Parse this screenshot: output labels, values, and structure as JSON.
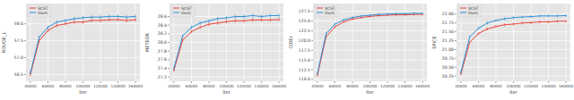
{
  "chart_data": [
    {
      "type": "line",
      "y_label": "ROUGE_L",
      "x_label": "Iter",
      "x": [
        40000,
        50000,
        60000,
        70000,
        80000,
        90000,
        100000,
        110000,
        120000,
        130000,
        140000,
        150000,
        160000
      ],
      "xlim": [
        35000,
        165000
      ],
      "xticks": [
        40000,
        60000,
        80000,
        100000,
        120000,
        140000,
        160000
      ],
      "ylim": [
        56.3,
        58.6
      ],
      "yticks": [
        56.5,
        {
          "value": 57,
          "label": "57.0"
        },
        57.5,
        {
          "value": 58,
          "label": "58.0"
        }
      ],
      "grid": true,
      "legend": "upper left",
      "series": [
        {
          "name": "SCST",
          "color": "#e8433a",
          "marker": "none",
          "values": [
            56.5,
            57.5,
            57.8,
            57.95,
            58.0,
            58.05,
            58.05,
            58.1,
            58.1,
            58.12,
            58.12,
            58.1,
            58.12
          ],
          "errors": [
            0.05,
            0.05,
            0.05,
            0.05,
            0.05,
            0.05,
            0.05,
            0.05,
            0.05,
            0.05,
            0.05,
            0.05,
            0.05
          ]
        },
        {
          "name": "Ours",
          "color": "#2e8fd6",
          "marker": "none",
          "values": [
            56.55,
            57.6,
            57.9,
            58.05,
            58.1,
            58.15,
            58.18,
            58.2,
            58.2,
            58.22,
            58.22,
            58.2,
            58.22
          ],
          "errors": [
            0.05,
            0.05,
            0.05,
            0.05,
            0.05,
            0.05,
            0.05,
            0.05,
            0.05,
            0.05,
            0.05,
            0.05,
            0.05
          ]
        }
      ]
    },
    {
      "type": "line",
      "y_label": "METEOR",
      "x_label": "Iter",
      "x": [
        40000,
        50000,
        60000,
        70000,
        80000,
        90000,
        100000,
        110000,
        120000,
        130000,
        140000,
        150000,
        160000
      ],
      "xlim": [
        35000,
        165000
      ],
      "xticks": [
        40000,
        60000,
        80000,
        100000,
        120000,
        140000,
        160000
      ],
      "ylim": [
        27.1,
        28.9
      ],
      "yticks": [
        27.2,
        27.4,
        27.6,
        27.8,
        {
          "value": 28,
          "label": "28.0"
        },
        28.2,
        28.4,
        28.6
      ],
      "grid": true,
      "legend": "upper left",
      "series": [
        {
          "name": "SCST",
          "color": "#e8433a",
          "marker": "none",
          "values": [
            27.35,
            28.05,
            28.25,
            28.35,
            28.42,
            28.45,
            28.48,
            28.5,
            28.5,
            28.52,
            28.52,
            28.52,
            28.53
          ],
          "errors": [
            0.04,
            0.04,
            0.04,
            0.04,
            0.04,
            0.04,
            0.04,
            0.04,
            0.04,
            0.04,
            0.04,
            0.04,
            0.04
          ]
        },
        {
          "name": "Ours",
          "color": "#2e8fd6",
          "marker": "none",
          "values": [
            27.4,
            28.15,
            28.35,
            28.45,
            28.5,
            28.55,
            28.57,
            28.6,
            28.6,
            28.62,
            28.6,
            28.62,
            28.62
          ],
          "errors": [
            0.04,
            0.04,
            0.04,
            0.04,
            0.04,
            0.04,
            0.04,
            0.04,
            0.04,
            0.04,
            0.04,
            0.04,
            0.04
          ]
        }
      ]
    },
    {
      "type": "line",
      "y_label": "CIDEr",
      "x_label": "Iter",
      "x": [
        40000,
        50000,
        60000,
        70000,
        80000,
        90000,
        100000,
        110000,
        120000,
        130000,
        140000,
        150000,
        160000
      ],
      "xlim": [
        35000,
        165000
      ],
      "xticks": [
        40000,
        60000,
        80000,
        100000,
        120000,
        140000,
        160000
      ],
      "ylim": [
        109.5,
        129.5
      ],
      "yticks": [
        {
          "value": 110,
          "label": "110.0"
        },
        112.5,
        {
          "value": 115,
          "label": "115.0"
        },
        117.5,
        {
          "value": 120,
          "label": "120.0"
        },
        122.5,
        {
          "value": 125,
          "label": "125.0"
        },
        127.5
      ],
      "grid": true,
      "legend": "upper left",
      "series": [
        {
          "name": "SCST",
          "color": "#e8433a",
          "marker": "none",
          "values": [
            111.0,
            121.0,
            123.5,
            124.8,
            125.5,
            125.9,
            126.2,
            126.4,
            126.5,
            126.6,
            126.6,
            126.7,
            126.7
          ],
          "errors": [
            0.3,
            0.3,
            0.3,
            0.3,
            0.3,
            0.3,
            0.3,
            0.3,
            0.3,
            0.3,
            0.3,
            0.3,
            0.3
          ]
        },
        {
          "name": "Ours",
          "color": "#2e8fd6",
          "marker": "none",
          "values": [
            111.5,
            121.8,
            124.2,
            125.3,
            125.9,
            126.3,
            126.5,
            126.7,
            126.8,
            126.9,
            126.9,
            127.0,
            127.0
          ],
          "errors": [
            0.3,
            0.3,
            0.3,
            0.3,
            0.3,
            0.3,
            0.3,
            0.3,
            0.3,
            0.3,
            0.3,
            0.3,
            0.3
          ]
        }
      ]
    },
    {
      "type": "line",
      "y_label": "SPICE",
      "x_label": "Iter",
      "x": [
        40000,
        50000,
        60000,
        70000,
        80000,
        90000,
        100000,
        110000,
        120000,
        130000,
        140000,
        150000,
        160000
      ],
      "xlim": [
        35000,
        165000
      ],
      "xticks": [
        40000,
        60000,
        80000,
        100000,
        120000,
        140000,
        160000
      ],
      "ylim": [
        20.1,
        22.3
      ],
      "yticks": [
        20.25,
        {
          "value": 20.5,
          "label": "20.50"
        },
        20.75,
        {
          "value": 21,
          "label": "21.00"
        },
        21.25,
        {
          "value": 21.5,
          "label": "21.50"
        },
        21.75,
        {
          "value": 22,
          "label": "22.00"
        }
      ],
      "grid": true,
      "legend": "upper left",
      "series": [
        {
          "name": "SCST",
          "color": "#e8433a",
          "marker": "none",
          "values": [
            20.3,
            21.2,
            21.45,
            21.58,
            21.65,
            21.7,
            21.72,
            21.75,
            21.76,
            21.78,
            21.78,
            21.8,
            21.8
          ],
          "errors": [
            0.04,
            0.04,
            0.04,
            0.04,
            0.04,
            0.04,
            0.04,
            0.04,
            0.04,
            0.04,
            0.04,
            0.04,
            0.04
          ]
        },
        {
          "name": "Ours",
          "color": "#2e8fd6",
          "marker": "none",
          "values": [
            20.35,
            21.35,
            21.6,
            21.75,
            21.82,
            21.87,
            21.9,
            21.92,
            21.93,
            21.95,
            21.95,
            21.95,
            21.96
          ],
          "errors": [
            0.04,
            0.04,
            0.04,
            0.04,
            0.04,
            0.04,
            0.04,
            0.04,
            0.04,
            0.04,
            0.04,
            0.04,
            0.04
          ]
        }
      ]
    }
  ]
}
